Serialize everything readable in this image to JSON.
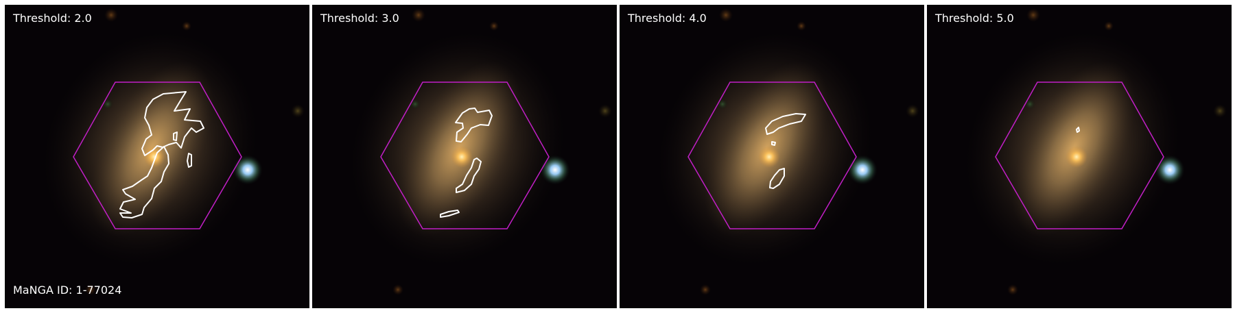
{
  "panels": [
    {
      "title": "Threshold: 2.0",
      "threshold": 2.0
    },
    {
      "title": "Threshold: 3.0",
      "threshold": 3.0
    },
    {
      "title": "Threshold: 4.0",
      "threshold": 4.0
    },
    {
      "title": "Threshold: 5.0",
      "threshold": 5.0
    }
  ],
  "galaxy_id_label": "MaNGA ID: 1-77024",
  "colors": {
    "background": "#060306",
    "hexagon": "#c21fc7",
    "contour": "#ffffff",
    "galaxy_core": "#ffd27a",
    "companion_star": "#cfe9ff"
  },
  "icons": {
    "ifu_footprint": "hexagon-outline",
    "contour": "threshold-contour"
  }
}
